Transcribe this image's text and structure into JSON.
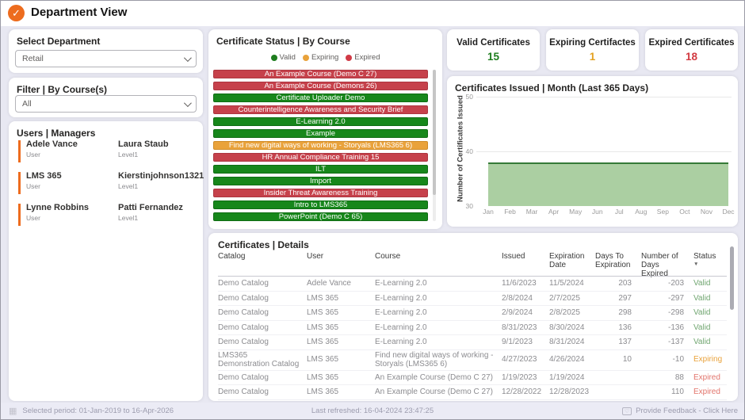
{
  "header": {
    "title": "Department View"
  },
  "filters": {
    "department_label": "Select Department",
    "department_value": "Retail",
    "course_label": "Filter | By Course(s)",
    "course_value": "All"
  },
  "users_managers": {
    "title": "Users | Managers",
    "rows": [
      {
        "user": "Adele Vance",
        "user_sub": "User",
        "manager": "Laura Staub",
        "manager_sub": "Level1"
      },
      {
        "user": "LMS 365",
        "user_sub": "User",
        "manager": "Kierstinjohnson1321",
        "manager_sub": "Level1"
      },
      {
        "user": "Lynne Robbins",
        "user_sub": "User",
        "manager": "Patti Fernandez",
        "manager_sub": "Level1"
      }
    ]
  },
  "certificate_status": {
    "title": "Certificate Status | By Course",
    "legend": [
      {
        "label": "Valid",
        "color": "#1E7D1E"
      },
      {
        "label": "Expiring",
        "color": "#E9A23B"
      },
      {
        "label": "Expired",
        "color": "#D13A46"
      }
    ],
    "status_colors": {
      "valid": {
        "fill": "#17871B",
        "border": "#0F6C13"
      },
      "expiring": {
        "fill": "#E9A23B",
        "border": "#CF8B28"
      },
      "expired": {
        "fill": "#C6414B",
        "border": "#AD3640"
      }
    },
    "bars": [
      {
        "label": "An Example Course (Demo C 27)",
        "status": "expired"
      },
      {
        "label": "An Example Course (Demons 26)",
        "status": "expired"
      },
      {
        "label": "Certificate Uploader Demo",
        "status": "valid"
      },
      {
        "label": "Counterintelligence Awareness and Security Brief",
        "status": "expired"
      },
      {
        "label": "E-Learning 2.0",
        "status": "valid"
      },
      {
        "label": "Example",
        "status": "valid"
      },
      {
        "label": "Find new digital ways of working - Storyals (LMS365 6)",
        "status": "expiring"
      },
      {
        "label": "HR Annual Compliance Training 15",
        "status": "expired"
      },
      {
        "label": "ILT",
        "status": "valid"
      },
      {
        "label": "Import",
        "status": "valid"
      },
      {
        "label": "Insider Threat Awareness Training",
        "status": "expired"
      },
      {
        "label": "Intro to LMS365",
        "status": "valid"
      },
      {
        "label": "PowerPoint (Demo C 65)",
        "status": "valid"
      }
    ]
  },
  "kpis": [
    {
      "label": "Valid Certificates",
      "value": "15",
      "color": "#1E7D1E"
    },
    {
      "label": "Expiring Certifactes",
      "value": "1",
      "color": "#E3A11F"
    },
    {
      "label": "Expired Certificates",
      "value": "18",
      "color": "#D23A41"
    }
  ],
  "chart_data": {
    "type": "area",
    "title": "Certificates Issued | Month (Last 365 Days)",
    "ylabel": "Number of Certificates Issued",
    "xlabel": "",
    "categories": [
      "Jan",
      "Feb",
      "Mar",
      "Apr",
      "May",
      "Jun",
      "Jul",
      "Aug",
      "Sep",
      "Oct",
      "Nov",
      "Dec"
    ],
    "values": [
      38,
      38,
      38,
      38,
      38,
      38,
      38,
      38,
      38,
      38,
      38,
      38
    ],
    "ylim": [
      30,
      50
    ],
    "yticks": [
      30,
      40,
      50
    ],
    "grid": true,
    "legend_position": "none",
    "fill_color": "#ABCFA2",
    "line_color": "#357A38"
  },
  "table": {
    "title": "Certificates | Details",
    "columns": [
      "Catalog",
      "User",
      "Course",
      "Issued",
      "Expiration Date",
      "Days To Expiration",
      "Number of Days Expired",
      "Status"
    ],
    "numeric_columns": [
      5,
      6
    ],
    "sort_column": "Status",
    "status_colors": {
      "Valid": "#71A671",
      "Expiring": "#E9A23B",
      "Expired": "#E2746C"
    },
    "rows": [
      [
        "Demo Catalog",
        "Adele Vance",
        "E-Learning 2.0",
        "11/6/2023",
        "11/5/2024",
        "203",
        "-203",
        "Valid"
      ],
      [
        "Demo Catalog",
        "LMS 365",
        "E-Learning 2.0",
        "2/8/2024",
        "2/7/2025",
        "297",
        "-297",
        "Valid"
      ],
      [
        "Demo Catalog",
        "LMS 365",
        "E-Learning 2.0",
        "2/9/2024",
        "2/8/2025",
        "298",
        "-298",
        "Valid"
      ],
      [
        "Demo Catalog",
        "LMS 365",
        "E-Learning 2.0",
        "8/31/2023",
        "8/30/2024",
        "136",
        "-136",
        "Valid"
      ],
      [
        "Demo Catalog",
        "LMS 365",
        "E-Learning 2.0",
        "9/1/2023",
        "8/31/2024",
        "137",
        "-137",
        "Valid"
      ],
      [
        "LMS365 Demonstration Catalog",
        "LMS 365",
        "Find new digital ways of working - Storyals (LMS365 6)",
        "4/27/2023",
        "4/26/2024",
        "10",
        "-10",
        "Expiring"
      ],
      [
        "Demo Catalog",
        "LMS 365",
        "An Example Course (Demo C 27)",
        "1/19/2023",
        "1/19/2024",
        "",
        "88",
        "Expired"
      ],
      [
        "Demo Catalog",
        "LMS 365",
        "An Example Course (Demo C 27)",
        "12/28/2022",
        "12/28/2023",
        "",
        "110",
        "Expired"
      ]
    ],
    "partial_row_clipped": true
  },
  "footer": {
    "selected_period": "Selected period: 01-Jan-2019 to 16-Apr-2026",
    "last_refreshed": "Last refreshed: 16-04-2024 23:47:25",
    "feedback": "Provide Feedback - Click Here"
  }
}
